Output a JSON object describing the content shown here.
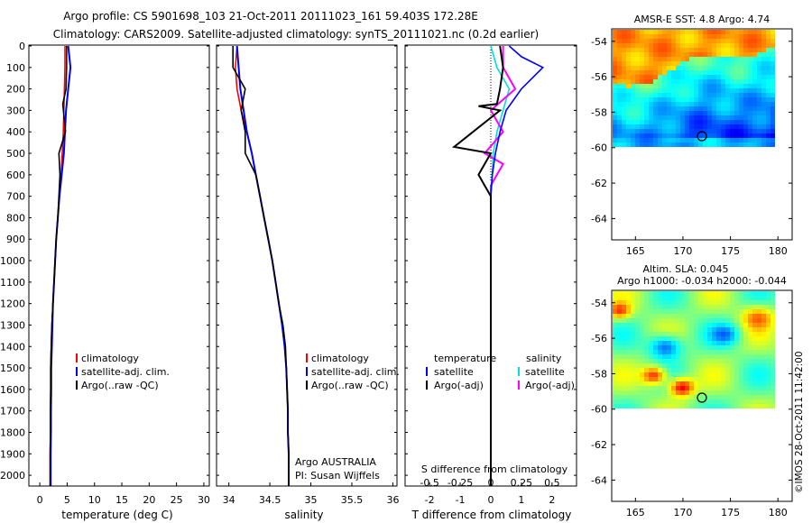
{
  "header": {
    "line1": "Argo profile: CS 5901698_103 21-Oct-2011 20111023_161 59.403S 172.28E",
    "line2": "Climatology: CARS2009. Satellite-adjusted climatology: synTS_20111021.nc (0.2d earlier)"
  },
  "depth_ticks": [
    "0",
    "100",
    "200",
    "300",
    "400",
    "500",
    "600",
    "700",
    "800",
    "900",
    "1000",
    "1100",
    "1200",
    "1300",
    "1400",
    "1500",
    "1600",
    "1700",
    "1800",
    "1900",
    "2000"
  ],
  "panels": {
    "temperature": {
      "xlabel": "temperature (deg C)",
      "xticks": [
        "0",
        "5",
        "10",
        "15",
        "20",
        "25",
        "30"
      ],
      "legend": [
        "climatology",
        "satellite-adj. clim.",
        "Argo(..raw -QC)"
      ]
    },
    "salinity": {
      "xlabel": "salinity",
      "xticks": [
        "34",
        "34.5",
        "35",
        "35.5",
        "36"
      ],
      "legend": [
        "climatology",
        "satellite-adj. clim.",
        "Argo(..raw -QC)"
      ],
      "owner1": "Argo AUSTRALIA",
      "owner2": "PI: Susan Wijffels"
    },
    "difference": {
      "xlabel": "T difference from climatology",
      "top_label": "S difference from climatology",
      "xticks_T": [
        "-2",
        "-1",
        "0",
        "1",
        "2"
      ],
      "xticks_S": [
        "-0.5",
        "-0.25",
        "0",
        "0.25",
        "0.5"
      ],
      "legend_heads": [
        "temperature",
        "salinity"
      ],
      "legend_T": [
        "satellite",
        "Argo(-adj)"
      ],
      "legend_S": [
        "satellite",
        "Argo(-adj)"
      ]
    }
  },
  "maps": {
    "sst": {
      "title": "AMSR-E SST: 4.8 Argo: 4.74",
      "xticks": [
        "165",
        "170",
        "175",
        "180"
      ],
      "yticks": [
        "-54",
        "-56",
        "-58",
        "-60",
        "-62",
        "-64"
      ]
    },
    "sla": {
      "title1": "Altim. SLA: 0.045",
      "title2": "Argo h1000: -0.034 h2000: -0.044",
      "xticks": [
        "165",
        "170",
        "175",
        "180"
      ],
      "yticks": [
        "-54",
        "-56",
        "-58",
        "-60",
        "-62",
        "-64"
      ]
    }
  },
  "credit": "©IMOS 28-Oct-2011 11:42:00",
  "colors": {
    "climatology": "#ff0000",
    "satellite": "#0000ff",
    "argo": "#000000",
    "sal_satellite": "#00e0e0",
    "sal_argo": "#ff00ff"
  },
  "chart_data": [
    {
      "type": "line",
      "title": "",
      "xlabel": "temperature (deg C)",
      "ylabel": "",
      "xlim": [
        -2,
        31
      ],
      "ylim": [
        2050,
        0
      ],
      "series": [
        {
          "name": "climatology",
          "x": [
            4.6,
            4.6,
            4.5,
            4.4,
            4.3,
            4.1,
            3.9,
            3.6,
            3.3,
            3.0,
            2.8,
            2.6,
            2.4,
            2.2,
            2.1,
            2.0,
            2.0,
            1.95,
            1.95,
            1.9,
            1.9
          ],
          "y": [
            0,
            100,
            200,
            300,
            400,
            500,
            600,
            700,
            800,
            900,
            1000,
            1100,
            1200,
            1300,
            1400,
            1500,
            1600,
            1700,
            1800,
            1900,
            2050
          ]
        },
        {
          "name": "satellite-adj. clim.",
          "x": [
            5.2,
            5.6,
            5.2,
            4.8,
            4.6,
            4.4,
            4.0,
            3.6,
            3.3,
            3.0,
            2.8,
            2.6,
            2.4,
            2.3,
            2.2,
            2.1,
            2.1,
            2.05,
            2.05,
            2.0,
            2.0
          ],
          "y": [
            0,
            100,
            200,
            300,
            400,
            500,
            600,
            700,
            800,
            900,
            1000,
            1100,
            1200,
            1300,
            1400,
            1500,
            1600,
            1700,
            1800,
            1900,
            2050
          ]
        },
        {
          "name": "Argo(..raw -QC)",
          "x": [
            4.9,
            4.9,
            4.8,
            4.2,
            4.7,
            3.5,
            3.7,
            3.5,
            3.3,
            3.0,
            2.8,
            2.6,
            2.4,
            2.2,
            2.1,
            2.0,
            2.0,
            1.95,
            1.95,
            1.9,
            1.9
          ],
          "y": [
            0,
            100,
            200,
            270,
            400,
            500,
            600,
            700,
            800,
            900,
            1000,
            1100,
            1200,
            1300,
            1400,
            1500,
            1600,
            1700,
            1800,
            1900,
            2050
          ]
        }
      ]
    },
    {
      "type": "line",
      "title": "",
      "xlabel": "salinity",
      "ylabel": "",
      "xlim": [
        33.85,
        36.05
      ],
      "ylim": [
        2050,
        0
      ],
      "series": [
        {
          "name": "climatology",
          "x": [
            34.1,
            34.08,
            34.1,
            34.15,
            34.22,
            34.28,
            34.33,
            34.38,
            34.43,
            34.48,
            34.53,
            34.57,
            34.61,
            34.65,
            34.68,
            34.7,
            34.71,
            34.72,
            34.72,
            34.73,
            34.73
          ],
          "y": [
            0,
            100,
            200,
            300,
            400,
            500,
            600,
            700,
            800,
            900,
            1000,
            1100,
            1200,
            1300,
            1400,
            1500,
            1600,
            1700,
            1800,
            1900,
            2050
          ]
        },
        {
          "name": "satellite-adj. clim.",
          "x": [
            34.1,
            34.12,
            34.14,
            34.18,
            34.22,
            34.28,
            34.33,
            34.38,
            34.43,
            34.48,
            34.53,
            34.57,
            34.61,
            34.65,
            34.68,
            34.7,
            34.71,
            34.72,
            34.72,
            34.73,
            34.73
          ],
          "y": [
            0,
            100,
            200,
            300,
            400,
            500,
            600,
            700,
            800,
            900,
            1000,
            1100,
            1200,
            1300,
            1400,
            1500,
            1600,
            1700,
            1800,
            1900,
            2050
          ]
        },
        {
          "name": "Argo(..raw -QC)",
          "x": [
            34.05,
            34.05,
            34.2,
            34.15,
            34.2,
            34.2,
            34.33,
            34.38,
            34.43,
            34.48,
            34.53,
            34.57,
            34.61,
            34.66,
            34.69,
            34.7,
            34.71,
            34.72,
            34.72,
            34.73,
            34.73
          ],
          "y": [
            0,
            100,
            200,
            300,
            400,
            500,
            600,
            700,
            800,
            900,
            1000,
            1100,
            1200,
            1300,
            1400,
            1500,
            1600,
            1700,
            1800,
            1900,
            2050
          ]
        }
      ]
    },
    {
      "type": "line",
      "title": "",
      "xlabel": "T difference from climatology",
      "ylabel": "",
      "xlim": [
        -2.8,
        2.8
      ],
      "ylim": [
        2050,
        0
      ],
      "series": [
        {
          "name": "satellite",
          "x": [
            0.6,
            1.0,
            1.7,
            1.0,
            0.5,
            0.3,
            0.15,
            0.05,
            0.0,
            0.0,
            0.0,
            0.0,
            0.0,
            0.0,
            0.0,
            0.0,
            0.0,
            0.0,
            0.0,
            0.0,
            0.0
          ],
          "y": [
            0,
            50,
            100,
            200,
            300,
            400,
            500,
            600,
            700,
            800,
            900,
            1000,
            1100,
            1200,
            1400,
            1600,
            1800,
            1900,
            1950,
            2000,
            2050
          ]
        },
        {
          "name": "Argo(-adj)",
          "x": [
            0.3,
            0.4,
            0.3,
            0.2,
            -0.4,
            0.3,
            -1.2,
            0.0,
            -0.4,
            -0.2,
            0.0,
            0.0,
            0.0,
            0.0,
            0.0,
            0.0,
            0.0,
            0.0,
            0.0,
            0.0
          ],
          "y": [
            0,
            100,
            200,
            270,
            280,
            300,
            470,
            500,
            600,
            650,
            700,
            800,
            1000,
            1200,
            1400,
            1600,
            1800,
            1900,
            2000,
            2050
          ]
        }
      ]
    },
    {
      "type": "line",
      "title": "",
      "xlabel": "S difference from climatology",
      "ylabel": "",
      "xlim": [
        -0.7,
        0.7
      ],
      "ylim": [
        2050,
        0
      ],
      "series": [
        {
          "name": "satellite",
          "x": [
            0.0,
            0.05,
            0.15,
            0.1,
            0.05,
            0.02,
            0.01,
            0.0,
            0.0,
            0.0,
            0.0,
            0.0,
            0.0
          ],
          "y": [
            0,
            100,
            200,
            300,
            400,
            500,
            600,
            700,
            900,
            1200,
            1500,
            1800,
            2050
          ]
        },
        {
          "name": "Argo(-adj)",
          "x": [
            0.1,
            0.1,
            0.2,
            0.0,
            0.1,
            -0.05,
            0.1,
            0.0,
            0.0,
            0.0,
            0.0,
            0.0,
            0.0
          ],
          "y": [
            0,
            100,
            200,
            300,
            400,
            500,
            550,
            650,
            900,
            1200,
            1500,
            1800,
            2050
          ]
        }
      ]
    }
  ]
}
